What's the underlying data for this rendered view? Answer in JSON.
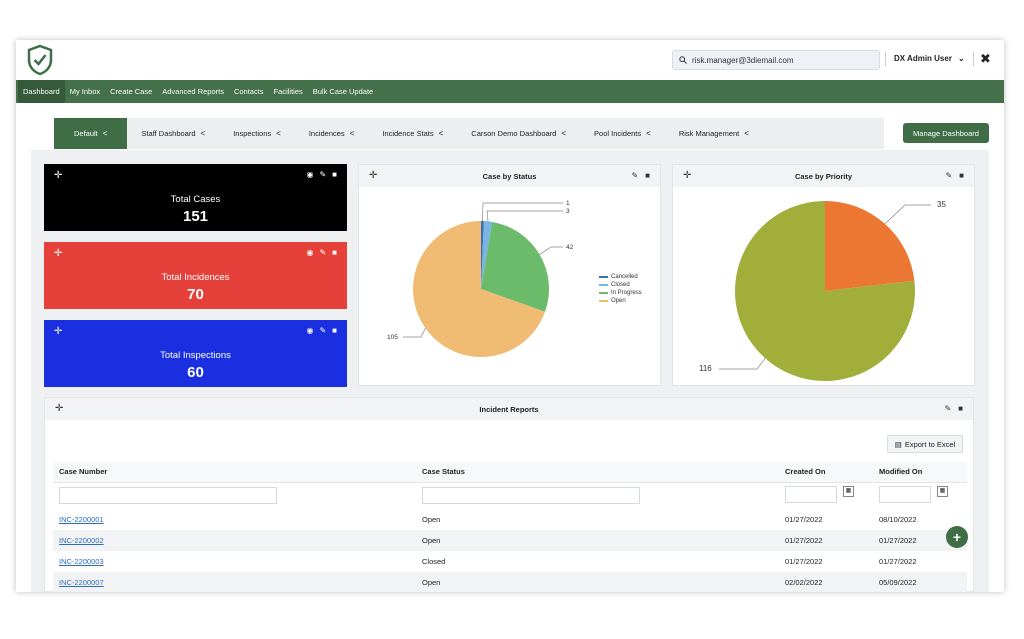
{
  "search": {
    "value": "risk.manager@3diemail.com"
  },
  "user": {
    "name": "DX Admin User"
  },
  "nav": [
    "Dashboard",
    "My Inbox",
    "Create Case",
    "Advanced Reports",
    "Contacts",
    "Facilities",
    "Bulk Case Update"
  ],
  "tabs": [
    "Default",
    "Staff Dashboard",
    "Inspections",
    "Incidences",
    "Incidence Stats",
    "Carson Demo Dashboard",
    "Pool Incidents",
    "Risk Management"
  ],
  "manage_dashboard": "Manage Dashboard",
  "stats": [
    {
      "label": "Total Cases",
      "value": "151"
    },
    {
      "label": "Total Incidences",
      "value": "70"
    },
    {
      "label": "Total Inspections",
      "value": "60"
    }
  ],
  "colors": {
    "nav": "#44704a",
    "accent": "#3f6d45",
    "black_card": "#000000",
    "red_card": "#e5413a",
    "blue_card": "#1a2fe0"
  },
  "chart_data": [
    {
      "type": "pie",
      "title": "Case by Status",
      "labels": [
        "Cancelled",
        "Closed",
        "In Progress",
        "Open"
      ],
      "values": [
        1,
        3,
        42,
        105
      ],
      "colors": [
        "#3b6fb5",
        "#79b5e0",
        "#6cbb6a",
        "#f0bc74"
      ],
      "legend": "right"
    },
    {
      "type": "pie",
      "title": "Case by Priority",
      "labels": [
        "",
        ""
      ],
      "values": [
        35,
        116
      ],
      "colors": [
        "#ec7733",
        "#a1ae3a"
      ]
    }
  ],
  "incident_reports": {
    "title": "Incident Reports",
    "export_label": "Export to Excel",
    "columns": [
      "Case Number",
      "Case Status",
      "Created On",
      "Modified On"
    ],
    "rows": [
      [
        "INC-2200001",
        "Open",
        "01/27/2022",
        "08/10/2022"
      ],
      [
        "INC-2200002",
        "Open",
        "01/27/2022",
        "01/27/2022"
      ],
      [
        "INC-2200003",
        "Closed",
        "01/27/2022",
        "01/27/2022"
      ],
      [
        "INC-2200007",
        "Open",
        "02/02/2022",
        "05/09/2022"
      ]
    ]
  }
}
